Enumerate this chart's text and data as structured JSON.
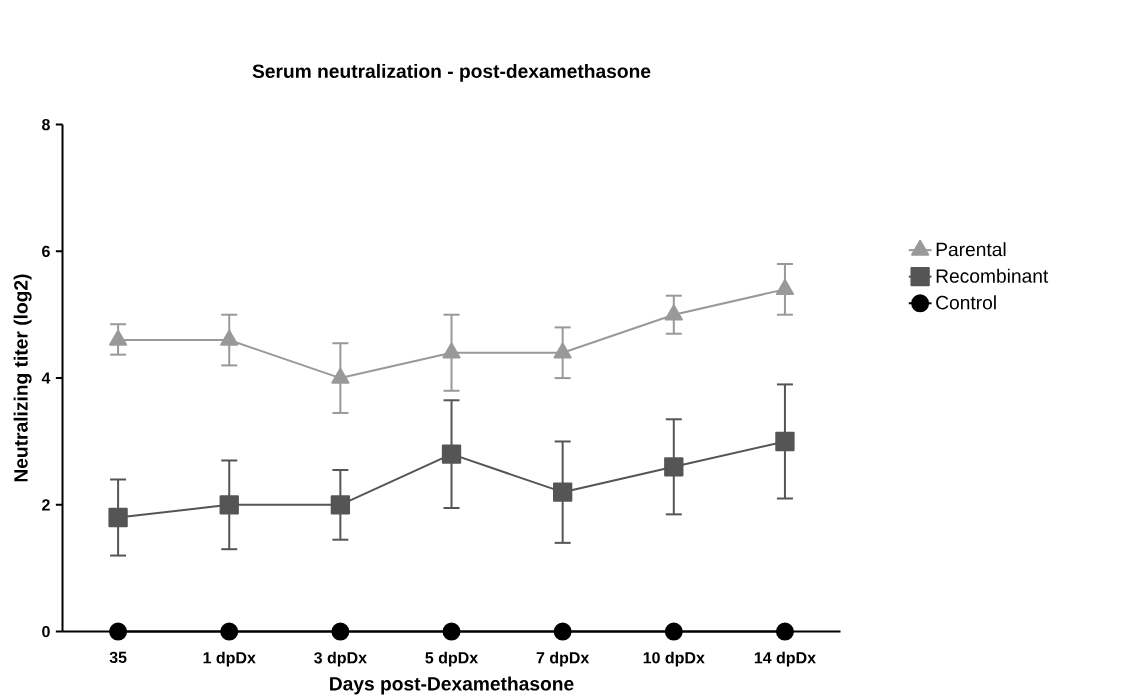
{
  "chart_data": {
    "type": "line",
    "title": "Serum neutralization - post-dexamethasone",
    "xlabel": "Days post-Dexamethasone",
    "ylabel": "Neutralizing titer (log2)",
    "categories": [
      "35",
      "1 dpDx",
      "3 dpDx",
      "5 dpDx",
      "7 dpDx",
      "10 dpDx",
      "14 dpDx"
    ],
    "ylim": [
      0,
      8
    ],
    "yticks": [
      0,
      2,
      4,
      6,
      8
    ],
    "legend": "right",
    "grid": false,
    "series": [
      {
        "name": "Parental",
        "color": "#999999",
        "marker": "triangle",
        "values": [
          4.6,
          4.6,
          4.0,
          4.4,
          4.4,
          5.0,
          5.4
        ],
        "errors": [
          [
            4.37,
            4.85
          ],
          [
            4.2,
            5.0
          ],
          [
            3.45,
            4.55
          ],
          [
            3.8,
            5.0
          ],
          [
            4.0,
            4.8
          ],
          [
            4.7,
            5.3
          ],
          [
            5.0,
            5.8
          ]
        ]
      },
      {
        "name": "Recombinant",
        "color": "#555555",
        "marker": "square",
        "values": [
          1.8,
          2.0,
          2.0,
          2.8,
          2.2,
          2.6,
          3.0
        ],
        "errors": [
          [
            1.2,
            2.4
          ],
          [
            1.3,
            2.7
          ],
          [
            1.45,
            2.55
          ],
          [
            1.95,
            3.65
          ],
          [
            1.4,
            3.0
          ],
          [
            1.85,
            3.35
          ],
          [
            2.1,
            3.9
          ]
        ]
      },
      {
        "name": "Control",
        "color": "#000000",
        "marker": "circle",
        "values": [
          0,
          0,
          0,
          0,
          0,
          0,
          0
        ]
      }
    ]
  }
}
